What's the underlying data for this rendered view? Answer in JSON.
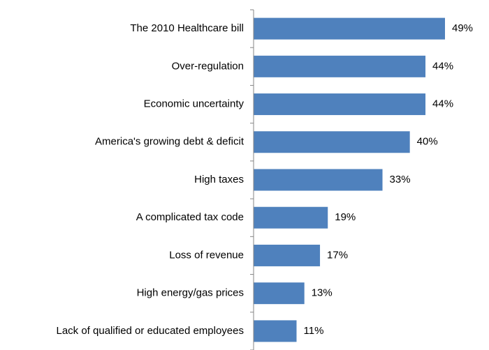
{
  "chart_data": {
    "type": "bar",
    "orientation": "horizontal",
    "categories": [
      "The 2010 Healthcare bill",
      "Over-regulation",
      "Economic uncertainty",
      "America's growing debt & deficit",
      "High taxes",
      "A complicated tax code",
      "Loss of revenue",
      "High energy/gas prices",
      "Lack of qualified or educated employees"
    ],
    "values": [
      49,
      44,
      44,
      40,
      33,
      19,
      17,
      13,
      11
    ],
    "value_labels": [
      "49%",
      "44%",
      "44%",
      "40%",
      "33%",
      "19%",
      "17%",
      "13%",
      "11%"
    ],
    "bar_color": "#4f81bd",
    "xlim": [
      0,
      49
    ],
    "grid": false,
    "legend": "none"
  }
}
